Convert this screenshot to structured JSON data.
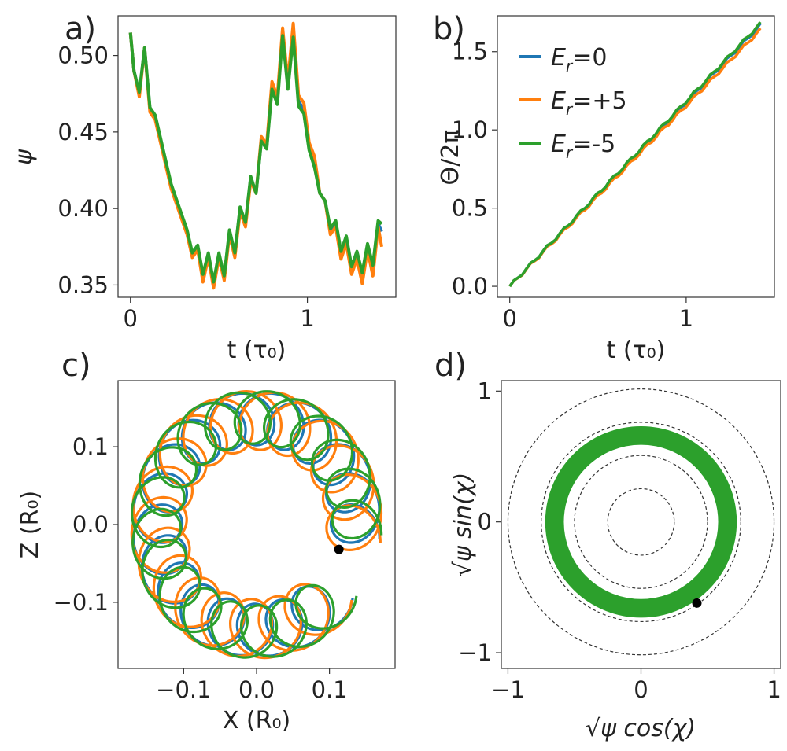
{
  "chart_data": [
    {
      "panel": "a)",
      "type": "line",
      "xlabel": "t (τ₀)",
      "ylabel": "ψ",
      "xlim": [
        -0.07,
        1.5
      ],
      "ylim": [
        0.342,
        0.526
      ],
      "xticks": [
        0,
        1
      ],
      "xtick_labels": [
        "0",
        "1"
      ],
      "yticks": [
        0.35,
        0.4,
        0.45,
        0.5
      ],
      "ytick_labels": [
        "0.35",
        "0.40",
        "0.45",
        "0.50"
      ],
      "series": [
        {
          "name": "E_r=0",
          "color": "#1f77b4",
          "x": [
            0.0,
            0.02,
            0.05,
            0.08,
            0.11,
            0.14,
            0.17,
            0.2,
            0.23,
            0.26,
            0.29,
            0.32,
            0.35,
            0.38,
            0.41,
            0.44,
            0.47,
            0.5,
            0.53,
            0.56,
            0.59,
            0.62,
            0.65,
            0.68,
            0.71,
            0.74,
            0.77,
            0.8,
            0.83,
            0.86,
            0.89,
            0.92,
            0.95,
            0.98,
            1.01,
            1.04,
            1.07,
            1.1,
            1.13,
            1.16,
            1.19,
            1.22,
            1.25,
            1.28,
            1.31,
            1.34,
            1.37,
            1.4,
            1.42
          ],
          "y": [
            0.515,
            0.49,
            0.475,
            0.505,
            0.465,
            0.46,
            0.445,
            0.43,
            0.415,
            0.405,
            0.395,
            0.385,
            0.37,
            0.375,
            0.355,
            0.37,
            0.35,
            0.37,
            0.355,
            0.385,
            0.37,
            0.4,
            0.39,
            0.42,
            0.41,
            0.445,
            0.44,
            0.48,
            0.47,
            0.515,
            0.48,
            0.515,
            0.47,
            0.465,
            0.44,
            0.43,
            0.41,
            0.405,
            0.385,
            0.39,
            0.37,
            0.38,
            0.36,
            0.37,
            0.355,
            0.375,
            0.36,
            0.39,
            0.385
          ]
        },
        {
          "name": "E_r=+5",
          "color": "#ff7f0e",
          "x": [
            0.0,
            0.02,
            0.05,
            0.08,
            0.11,
            0.14,
            0.17,
            0.2,
            0.23,
            0.26,
            0.29,
            0.32,
            0.35,
            0.38,
            0.41,
            0.44,
            0.47,
            0.5,
            0.53,
            0.56,
            0.59,
            0.62,
            0.65,
            0.68,
            0.71,
            0.74,
            0.77,
            0.8,
            0.83,
            0.86,
            0.89,
            0.92,
            0.95,
            0.98,
            1.01,
            1.04,
            1.07,
            1.1,
            1.13,
            1.16,
            1.19,
            1.22,
            1.25,
            1.28,
            1.31,
            1.34,
            1.37,
            1.4,
            1.42
          ],
          "y": [
            0.515,
            0.49,
            0.473,
            0.505,
            0.463,
            0.458,
            0.443,
            0.428,
            0.413,
            0.403,
            0.393,
            0.383,
            0.368,
            0.373,
            0.352,
            0.368,
            0.348,
            0.368,
            0.353,
            0.383,
            0.368,
            0.398,
            0.388,
            0.418,
            0.41,
            0.447,
            0.442,
            0.483,
            0.473,
            0.518,
            0.483,
            0.521,
            0.474,
            0.469,
            0.443,
            0.434,
            0.41,
            0.405,
            0.383,
            0.388,
            0.367,
            0.377,
            0.357,
            0.367,
            0.351,
            0.373,
            0.356,
            0.388,
            0.375
          ]
        },
        {
          "name": "E_r=-5",
          "color": "#2ca02c",
          "x": [
            0.0,
            0.02,
            0.05,
            0.08,
            0.11,
            0.14,
            0.17,
            0.2,
            0.23,
            0.26,
            0.29,
            0.32,
            0.35,
            0.38,
            0.41,
            0.44,
            0.47,
            0.5,
            0.53,
            0.56,
            0.59,
            0.62,
            0.65,
            0.68,
            0.71,
            0.74,
            0.77,
            0.8,
            0.83,
            0.86,
            0.89,
            0.92,
            0.95,
            0.98,
            1.01,
            1.04,
            1.07,
            1.1,
            1.13,
            1.16,
            1.19,
            1.22,
            1.25,
            1.28,
            1.31,
            1.34,
            1.37,
            1.4,
            1.42
          ],
          "y": [
            0.515,
            0.49,
            0.476,
            0.505,
            0.466,
            0.461,
            0.446,
            0.431,
            0.416,
            0.406,
            0.396,
            0.386,
            0.371,
            0.376,
            0.357,
            0.371,
            0.352,
            0.371,
            0.356,
            0.386,
            0.371,
            0.401,
            0.391,
            0.421,
            0.41,
            0.444,
            0.439,
            0.478,
            0.468,
            0.513,
            0.478,
            0.512,
            0.467,
            0.462,
            0.438,
            0.427,
            0.41,
            0.405,
            0.387,
            0.392,
            0.372,
            0.382,
            0.362,
            0.372,
            0.358,
            0.377,
            0.363,
            0.392,
            0.39
          ]
        }
      ]
    },
    {
      "panel": "b)",
      "type": "line",
      "xlabel": "t (τ₀)",
      "ylabel": "Θ/2π",
      "xlim": [
        -0.07,
        1.5
      ],
      "ylim": [
        -0.07,
        1.73
      ],
      "xticks": [
        0,
        1
      ],
      "xtick_labels": [
        "0",
        "1"
      ],
      "yticks": [
        0,
        0.5,
        1.0,
        1.5
      ],
      "ytick_labels": [
        "0.0",
        "0.5",
        "1.0",
        "1.5"
      ],
      "legend": {
        "position": "upper-left",
        "entries": [
          {
            "sub": "r",
            "value": "=0",
            "color": "#1f77b4"
          },
          {
            "sub": "r",
            "value": "=+5",
            "color": "#ff7f0e"
          },
          {
            "sub": "r",
            "value": "=-5",
            "color": "#2ca02c"
          }
        ]
      },
      "series": [
        {
          "name": "E_r=0",
          "color": "#1f77b4",
          "x": [
            0.0,
            1.42
          ],
          "y": [
            0.0,
            1.67
          ],
          "wiggle": 0.01
        },
        {
          "name": "E_r=+5",
          "color": "#ff7f0e",
          "x": [
            0.0,
            1.42
          ],
          "y": [
            0.0,
            1.64
          ],
          "wiggle": 0.01
        },
        {
          "name": "E_r=-5",
          "color": "#2ca02c",
          "x": [
            0.0,
            1.42
          ],
          "y": [
            0.0,
            1.68
          ],
          "wiggle": 0.01
        }
      ]
    },
    {
      "panel": "c)",
      "type": "line",
      "xlabel": "X (R₀)",
      "ylabel": "Z (R₀)",
      "xlim": [
        -0.19,
        0.19
      ],
      "ylim": [
        -0.185,
        0.185
      ],
      "xticks": [
        -0.1,
        0.0,
        0.1
      ],
      "xtick_labels": [
        "−0.1",
        "0.0",
        "0.1"
      ],
      "yticks": [
        -0.1,
        0.0,
        0.1
      ],
      "ytick_labels": [
        "−0.1",
        "0.0",
        "0.1"
      ],
      "curves": [
        {
          "name": "E_r=0",
          "color": "#1f77b4",
          "R": 0.136,
          "rho": 0.034,
          "loops": 19,
          "turns": 0.9,
          "phase": 0.06
        },
        {
          "name": "E_r=+5",
          "color": "#ff7f0e",
          "R": 0.134,
          "rho": 0.038,
          "loops": 19,
          "turns": 0.9,
          "phase": 0.02
        },
        {
          "name": "E_r=-5",
          "color": "#2ca02c",
          "R": 0.138,
          "rho": 0.034,
          "loops": 19,
          "turns": 0.9,
          "phase": 0.1
        }
      ],
      "marker": {
        "x": 0.113,
        "y": -0.032
      }
    },
    {
      "panel": "d)",
      "type": "line",
      "xlabel": "√ψ cos(χ)",
      "ylabel": "√ψ sin(χ)",
      "xlim": [
        -1.05,
        1.05
      ],
      "ylim": [
        -1.12,
        1.08
      ],
      "xticks": [
        -1,
        0,
        1
      ],
      "xtick_labels": [
        "−1",
        "0",
        "1"
      ],
      "yticks": [
        -1,
        0,
        1
      ],
      "ytick_labels": [
        "−1",
        "0",
        "1"
      ],
      "band": {
        "color": "#2ca02c",
        "r_inner": 0.58,
        "r_outer": 0.72
      },
      "dashed_circles": [
        0.25,
        0.5,
        0.75,
        1.0
      ],
      "marker": {
        "x": 0.42,
        "y": -0.62
      }
    }
  ]
}
